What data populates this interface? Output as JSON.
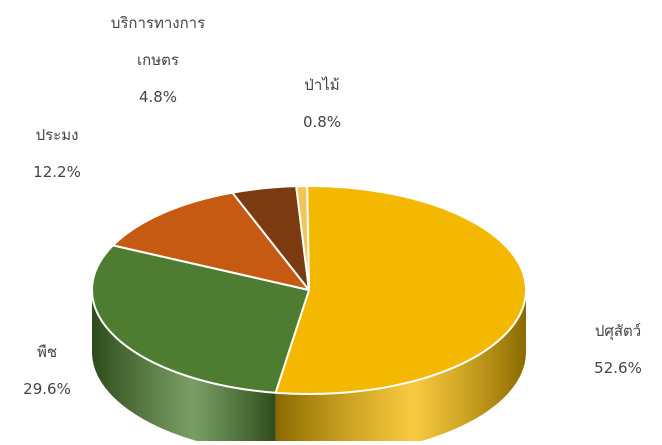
{
  "chart_data": {
    "type": "pie",
    "style": "3d",
    "title": "",
    "slices": [
      {
        "label_lines": [
          "ปศุสัตว์"
        ],
        "value": 52.6,
        "value_label": "52.6%",
        "color": "#F5B800",
        "side_color": "#8A6A00"
      },
      {
        "label_lines": [
          "พืช"
        ],
        "value": 29.6,
        "value_label": "29.6%",
        "color": "#4E7D32",
        "side_color": "#2E4C1B"
      },
      {
        "label_lines": [
          "ประมง"
        ],
        "value": 12.2,
        "value_label": "12.2%",
        "color": "#C75A12",
        "side_color": "#7A360A"
      },
      {
        "label_lines": [
          "บริการทางการ",
          "เกษตร"
        ],
        "value": 4.8,
        "value_label": "4.8%",
        "color": "#7B3A10",
        "side_color": "#4A2208"
      },
      {
        "label_lines": [
          "ป่าไม้"
        ],
        "value": 0.8,
        "value_label": "0.8%",
        "color": "#F2C45A",
        "side_color": "#9C7A20"
      }
    ],
    "legend": "none"
  }
}
